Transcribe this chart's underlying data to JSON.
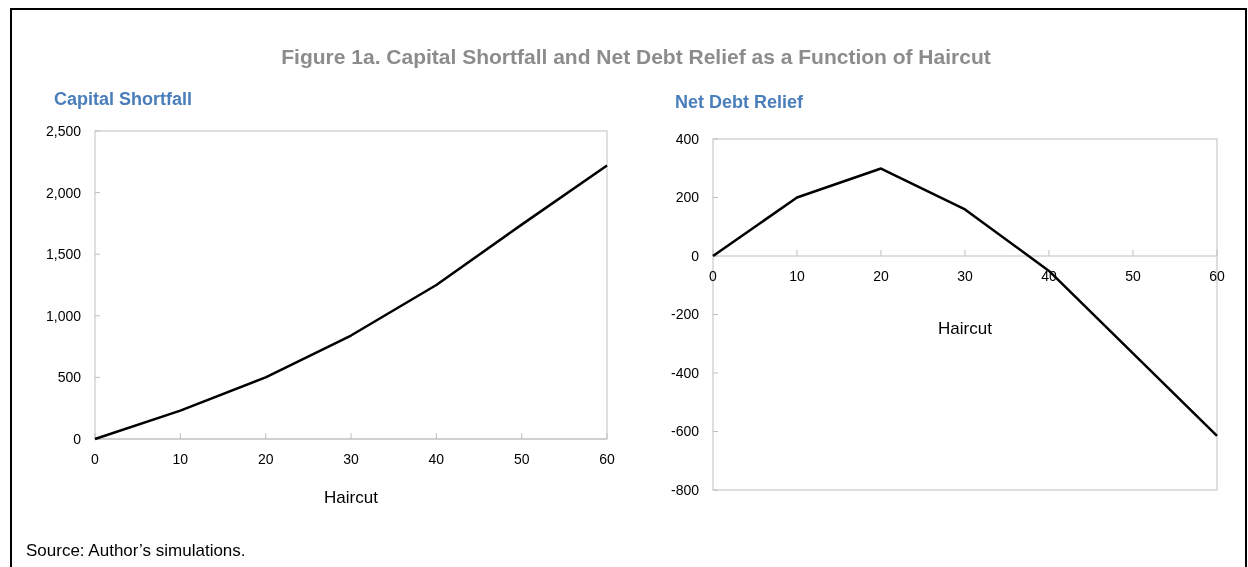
{
  "chart_data": [
    {
      "type": "line",
      "title": "Capital Shortfall",
      "xlabel": "Haircut",
      "x": [
        0,
        10,
        20,
        30,
        40,
        50,
        60
      ],
      "series": [
        {
          "color": "#000000",
          "values": [
            0,
            230,
            500,
            840,
            1250,
            1740,
            2220
          ]
        }
      ],
      "xlim": [
        0,
        60
      ],
      "xticks": [
        0,
        10,
        20,
        30,
        40,
        50,
        60
      ],
      "ylim": [
        0,
        2500
      ],
      "yticks": [
        0,
        500,
        {
          "value": 1000,
          "label": "1,000"
        },
        {
          "value": 1500,
          "label": "1,500"
        },
        {
          "value": 2000,
          "label": "2,000"
        },
        {
          "value": 2500,
          "label": "2,500"
        }
      ],
      "grid": false,
      "marker": "none",
      "line_style": "solid",
      "annotations": [
        "Figure 1a. Capital Shortfall and Net Debt Relief as a Function of Haircut",
        "Source: Author’s simulations."
      ]
    },
    {
      "type": "line",
      "title": "Net Debt Relief",
      "xlabel": "Haircut",
      "x": [
        0,
        10,
        20,
        30,
        40,
        50,
        60
      ],
      "series": [
        {
          "color": "#000000",
          "values": [
            0,
            200,
            299,
            159,
            -51,
            -333,
            -615
          ]
        }
      ],
      "xlim": [
        0,
        60
      ],
      "xticks": [
        0,
        10,
        20,
        30,
        40,
        50,
        60
      ],
      "ylim": [
        -800,
        400
      ],
      "yticks": [
        -800,
        -600,
        -400,
        -200,
        0,
        200,
        400
      ],
      "grid": false,
      "marker": "none",
      "line_style": "solid"
    }
  ]
}
